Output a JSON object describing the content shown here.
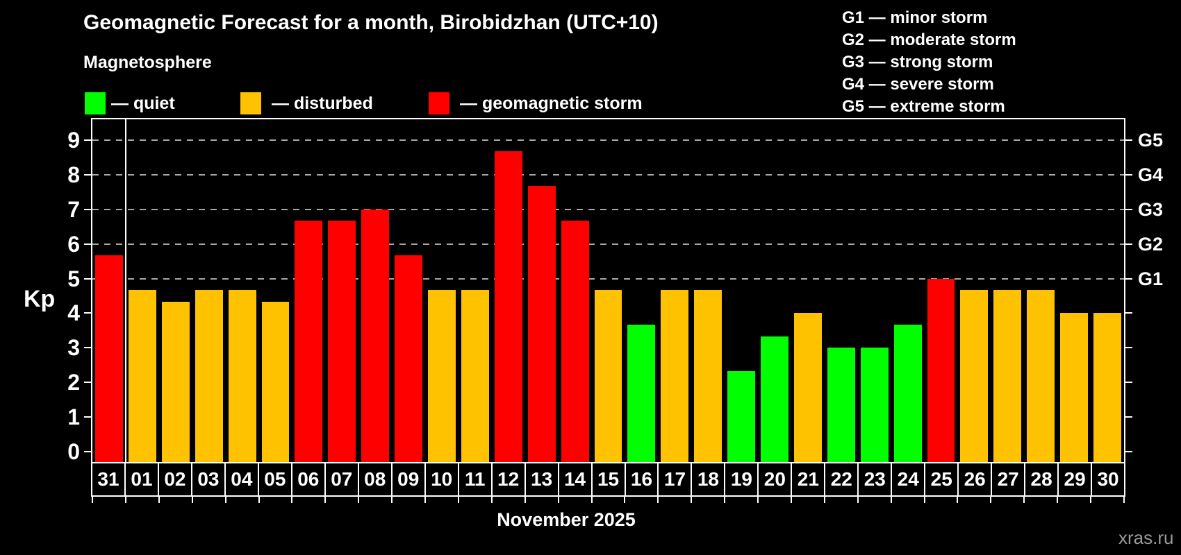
{
  "header": {
    "title": "Geomagnetic Forecast for a month, Birobidzhan (UTC+10)",
    "subtitle": "Magnetosphere"
  },
  "legend": {
    "items": [
      {
        "label": "— quiet",
        "status": "quiet"
      },
      {
        "label": "— disturbed",
        "status": "disturbed"
      },
      {
        "label": "— geomagnetic storm",
        "status": "storm"
      }
    ]
  },
  "g_legend": {
    "items": [
      "G1 — minor storm",
      "G2 — moderate storm",
      "G3 — strong storm",
      "G4 — severe storm",
      "G5 — extreme storm"
    ]
  },
  "colors": {
    "quiet": "#00ff00",
    "disturbed": "#ffc200",
    "storm": "#ff0000",
    "grid": "#a8a8a8",
    "axis": "#ffffff",
    "watermark": "#9a9a9a"
  },
  "axes": {
    "y_label": "Kp",
    "y_ticks": [
      0,
      1,
      2,
      3,
      4,
      5,
      6,
      7,
      8,
      9
    ],
    "right_labels": [
      {
        "text": "G1",
        "value": 5
      },
      {
        "text": "G2",
        "value": 6
      },
      {
        "text": "G3",
        "value": 7
      },
      {
        "text": "G4",
        "value": 8
      },
      {
        "text": "G5",
        "value": 9
      }
    ],
    "x_label": "November 2025"
  },
  "watermark": "xras.ru",
  "chart_data": {
    "type": "bar",
    "title": "Geomagnetic Forecast for a month, Birobidzhan (UTC+10)",
    "subtitle": "Magnetosphere",
    "xlabel": "November 2025",
    "ylabel": "Kp",
    "ylim": [
      -0.35,
      9.6
    ],
    "grid": "dashed horizontal at Kp 5..9 (G1..G5)",
    "gridlines_at": [
      5,
      6,
      7,
      8,
      9
    ],
    "legend_position": "top-left",
    "separator_after_index": 0,
    "categories": [
      "31",
      "01",
      "02",
      "03",
      "04",
      "05",
      "06",
      "07",
      "08",
      "09",
      "10",
      "11",
      "12",
      "13",
      "14",
      "15",
      "16",
      "17",
      "18",
      "19",
      "20",
      "21",
      "22",
      "23",
      "24",
      "25",
      "26",
      "27",
      "28",
      "29",
      "30"
    ],
    "values": [
      5.67,
      4.67,
      4.33,
      4.67,
      4.67,
      4.33,
      6.67,
      6.67,
      7.0,
      5.67,
      4.67,
      4.67,
      8.67,
      7.67,
      6.67,
      4.67,
      3.67,
      4.67,
      4.67,
      2.33,
      3.33,
      4.0,
      3.0,
      3.0,
      3.67,
      5.0,
      4.67,
      4.67,
      4.67,
      4.0,
      4.0
    ],
    "statuses": [
      "storm",
      "disturbed",
      "disturbed",
      "disturbed",
      "disturbed",
      "disturbed",
      "storm",
      "storm",
      "storm",
      "storm",
      "disturbed",
      "disturbed",
      "storm",
      "storm",
      "storm",
      "disturbed",
      "quiet",
      "disturbed",
      "disturbed",
      "quiet",
      "quiet",
      "disturbed",
      "quiet",
      "quiet",
      "quiet",
      "storm",
      "disturbed",
      "disturbed",
      "disturbed",
      "disturbed",
      "disturbed"
    ]
  }
}
